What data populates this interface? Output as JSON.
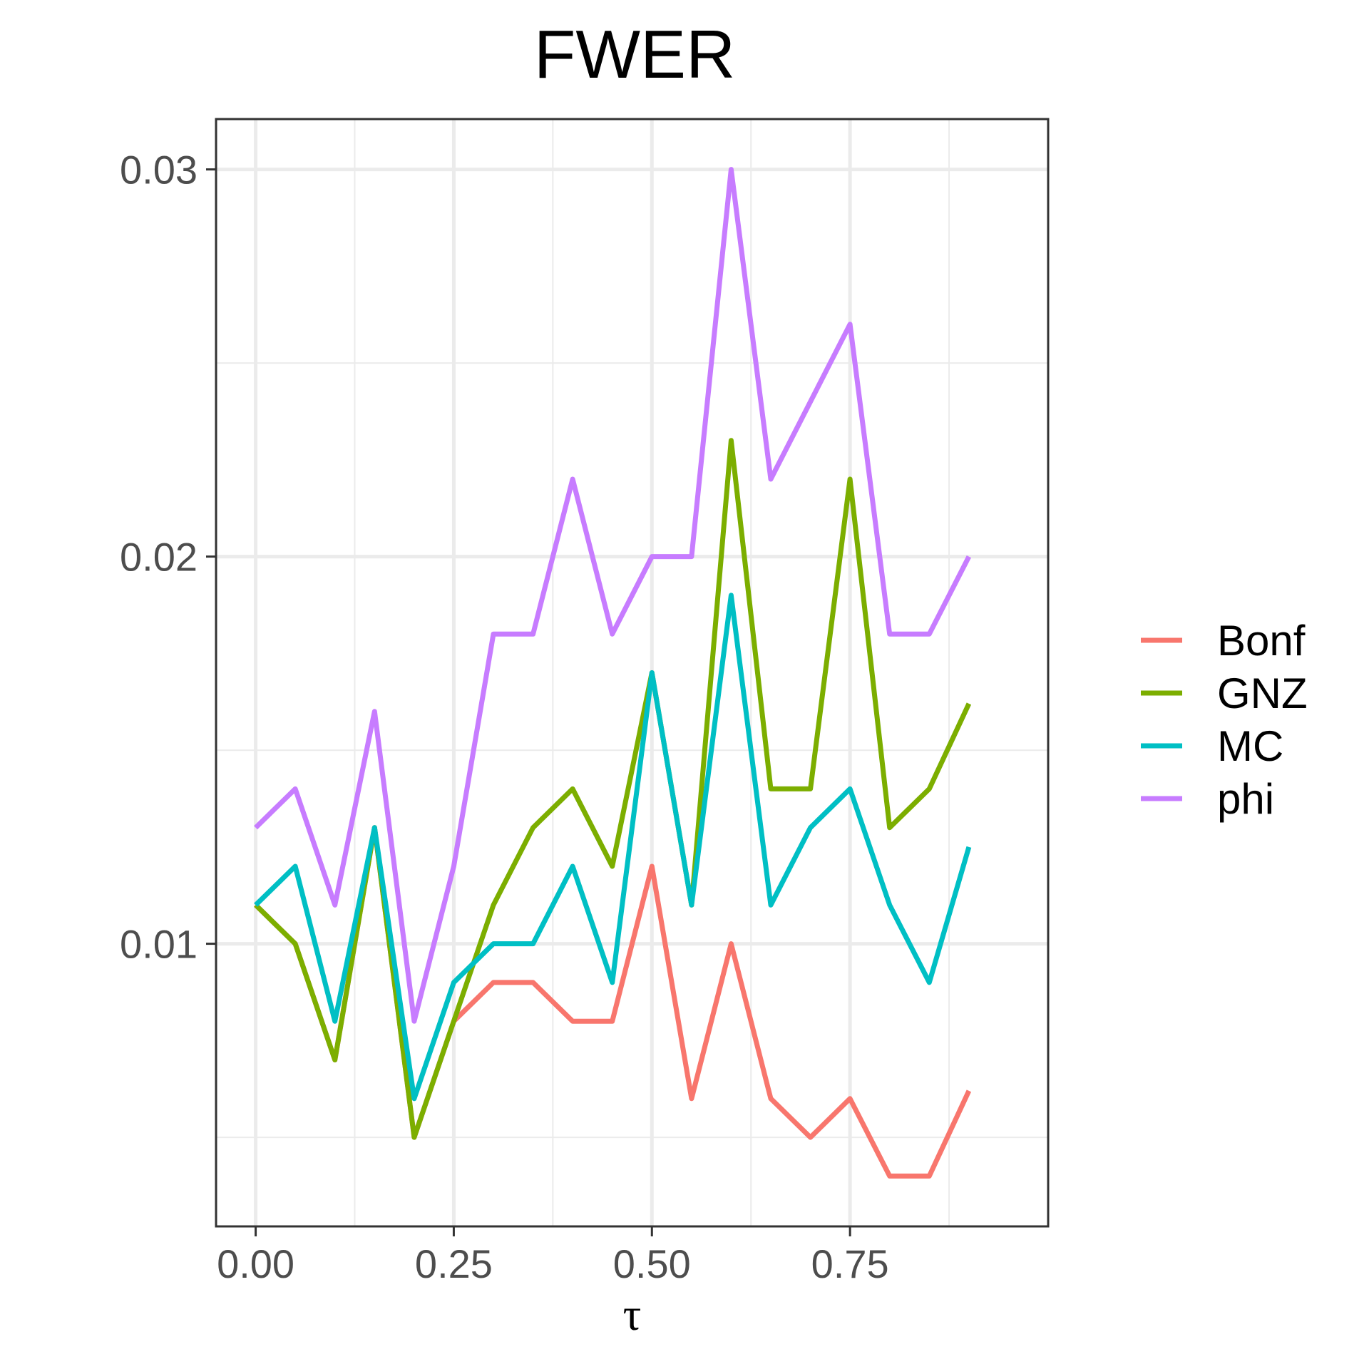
{
  "chart_data": {
    "type": "line",
    "title": "FWER",
    "xlabel": "τ",
    "ylabel": "",
    "xlim": [
      -0.05,
      1.0
    ],
    "ylim": [
      0.0027,
      0.0313
    ],
    "x_ticks": [
      0.0,
      0.25,
      0.5,
      0.75
    ],
    "x_tick_labels": [
      "0.00",
      "0.25",
      "0.50",
      "0.75"
    ],
    "y_ticks": [
      0.01,
      0.02,
      0.03
    ],
    "y_tick_labels": [
      "0.01",
      "0.02",
      "0.03"
    ],
    "grid": true,
    "legend_position": "right",
    "x": [
      0.0,
      0.05,
      0.1,
      0.15,
      0.2,
      0.25,
      0.3,
      0.35,
      0.4,
      0.45,
      0.5,
      0.55,
      0.6,
      0.65,
      0.7,
      0.75,
      0.8,
      0.85,
      0.9
    ],
    "series": [
      {
        "name": "Bonf",
        "color": "#F8766D",
        "values": [
          0.011,
          0.01,
          0.007,
          0.013,
          0.005,
          0.008,
          0.009,
          0.009,
          0.008,
          0.008,
          0.012,
          0.006,
          0.01,
          0.006,
          0.005,
          0.006,
          0.004,
          0.004,
          0.0062
        ]
      },
      {
        "name": "GNZ",
        "color": "#7CAE00",
        "values": [
          0.011,
          0.01,
          0.007,
          0.013,
          0.005,
          0.008,
          0.011,
          0.013,
          0.014,
          0.012,
          0.017,
          0.011,
          0.023,
          0.014,
          0.014,
          0.022,
          0.013,
          0.014,
          0.0162
        ]
      },
      {
        "name": "MC",
        "color": "#00BFC4",
        "values": [
          0.011,
          0.012,
          0.008,
          0.013,
          0.006,
          0.009,
          0.01,
          0.01,
          0.012,
          0.009,
          0.017,
          0.011,
          0.019,
          0.011,
          0.013,
          0.014,
          0.011,
          0.009,
          0.0125
        ]
      },
      {
        "name": "phi",
        "color": "#C77CFF",
        "values": [
          0.013,
          0.014,
          0.011,
          0.016,
          0.008,
          0.012,
          0.018,
          0.018,
          0.022,
          0.018,
          0.02,
          0.02,
          0.03,
          0.022,
          0.024,
          0.026,
          0.018,
          0.018,
          0.02
        ]
      }
    ]
  }
}
